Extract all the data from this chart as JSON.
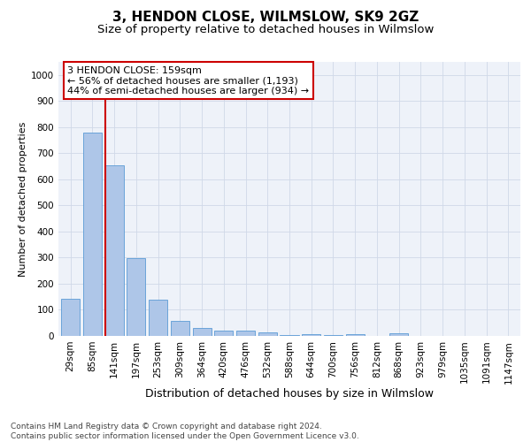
{
  "title": "3, HENDON CLOSE, WILMSLOW, SK9 2GZ",
  "subtitle": "Size of property relative to detached houses in Wilmslow",
  "xlabel": "Distribution of detached houses by size in Wilmslow",
  "ylabel": "Number of detached properties",
  "footer_line1": "Contains HM Land Registry data © Crown copyright and database right 2024.",
  "footer_line2": "Contains public sector information licensed under the Open Government Licence v3.0.",
  "bar_labels": [
    "29sqm",
    "85sqm",
    "141sqm",
    "197sqm",
    "253sqm",
    "309sqm",
    "364sqm",
    "420sqm",
    "476sqm",
    "532sqm",
    "588sqm",
    "644sqm",
    "700sqm",
    "756sqm",
    "812sqm",
    "868sqm",
    "923sqm",
    "979sqm",
    "1035sqm",
    "1091sqm",
    "1147sqm"
  ],
  "bar_values": [
    142,
    778,
    655,
    298,
    138,
    57,
    29,
    22,
    21,
    14,
    5,
    7,
    5,
    6,
    0,
    10,
    0,
    0,
    0,
    0,
    0
  ],
  "bar_color": "#aec6e8",
  "bar_edge_color": "#5b9bd5",
  "property_line_color": "#cc0000",
  "annotation_line1": "3 HENDON CLOSE: 159sqm",
  "annotation_line2": "← 56% of detached houses are smaller (1,193)",
  "annotation_line3": "44% of semi-detached houses are larger (934) →",
  "annotation_box_color": "#cc0000",
  "ylim": [
    0,
    1050
  ],
  "yticks": [
    0,
    100,
    200,
    300,
    400,
    500,
    600,
    700,
    800,
    900,
    1000
  ],
  "grid_color": "#d0d8e8",
  "background_color": "#eef2f9",
  "title_fontsize": 11,
  "subtitle_fontsize": 9.5,
  "ylabel_fontsize": 8,
  "xlabel_fontsize": 9,
  "footer_fontsize": 6.5,
  "tick_fontsize": 7.5,
  "annotation_fontsize": 8
}
